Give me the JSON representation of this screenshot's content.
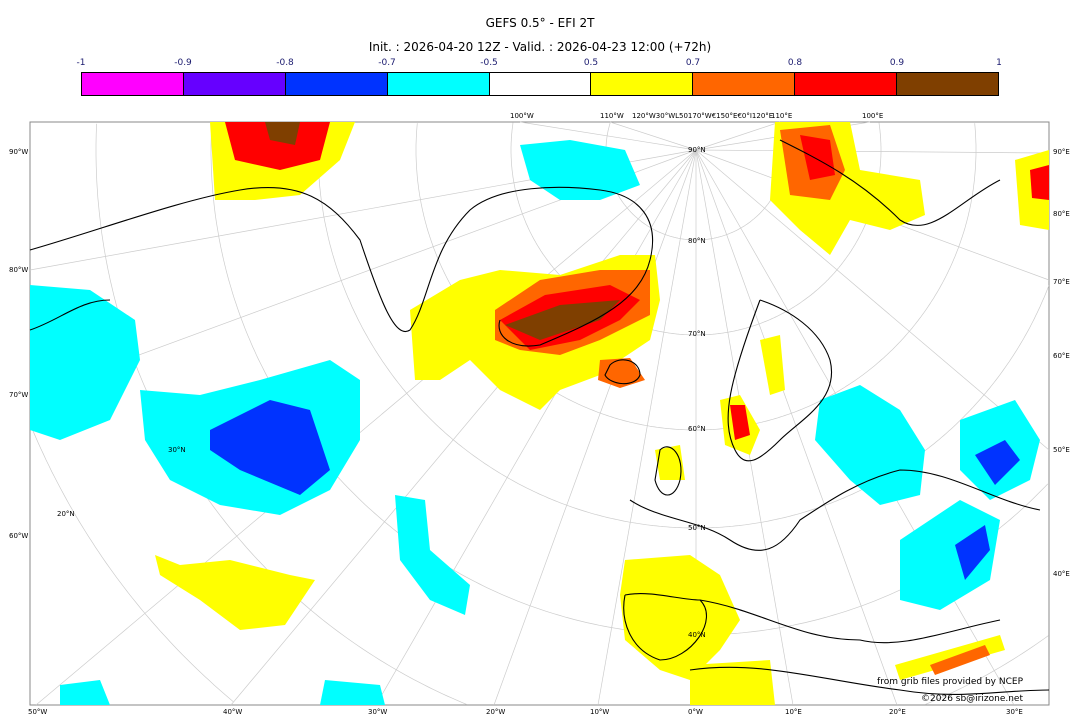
{
  "title": "GEFS 0.5° - EFI 2T",
  "subtitle": "Init. : 2026-04-20 12Z - Valid. : 2026-04-23 12:00 (+72h)",
  "colorbar": {
    "ticks": [
      "-1",
      "-0.9",
      "-0.8",
      "-0.7",
      "-0.5",
      "0.5",
      "0.7",
      "0.8",
      "0.9",
      "1"
    ],
    "colors": [
      "#ff00ff",
      "#6600ff",
      "#0033ff",
      "#00ffff",
      "#ffffff",
      "#ffff00",
      "#ff6600",
      "#ff0000",
      "#7f3f00"
    ]
  },
  "axes": {
    "top": [
      "100°W",
      "110°W",
      "120°W30°WL50170°W€150°E€0°I120°E",
      "110°E",
      "100°E"
    ],
    "left": [
      "90°W",
      "80°W",
      "70°W",
      "60°W"
    ],
    "right": [
      "90°E",
      "80°E",
      "70°E",
      "60°E",
      "50°E",
      "40°E"
    ],
    "bottom": [
      "50°W",
      "40°W",
      "30°W",
      "20°W",
      "10°W",
      "0°W",
      "10°E",
      "20°E",
      "30°E"
    ],
    "lat_labels": [
      "90°N",
      "80°N",
      "70°N",
      "60°N",
      "50°N",
      "40°N",
      "30°N",
      "20°N"
    ]
  },
  "credits": {
    "line1": "from grib files provided by NCEP",
    "line2": "©2026 sb@irizone.net"
  }
}
